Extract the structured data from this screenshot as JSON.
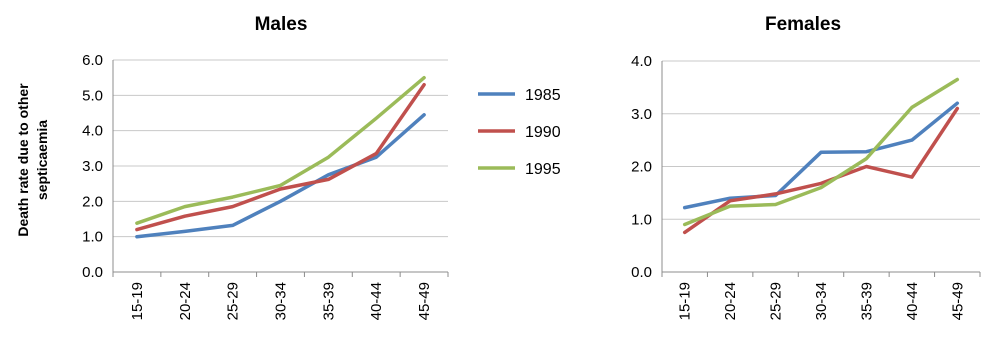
{
  "chart_data": [
    {
      "type": "line",
      "title": "Males",
      "ylabel": "Death rate due to other septicaemia",
      "xlabel": "",
      "categories": [
        "15-19",
        "20-24",
        "25-29",
        "30-34",
        "35-39",
        "40-44",
        "45-49"
      ],
      "ylim": [
        0,
        6
      ],
      "yticks": [
        "0.0",
        "1.0",
        "2.0",
        "3.0",
        "4.0",
        "5.0",
        "6.0"
      ],
      "grid": true,
      "series": [
        {
          "name": "1985",
          "color": "#4f81bd",
          "values": [
            1.0,
            1.15,
            1.32,
            2.0,
            2.75,
            3.25,
            4.45
          ]
        },
        {
          "name": "1990",
          "color": "#c0504d",
          "values": [
            1.2,
            1.58,
            1.85,
            2.35,
            2.62,
            3.35,
            5.3
          ]
        },
        {
          "name": "1995",
          "color": "#9bbb59",
          "values": [
            1.38,
            1.85,
            2.12,
            2.45,
            3.25,
            4.35,
            5.5
          ]
        }
      ]
    },
    {
      "type": "line",
      "title": "Females",
      "ylabel": "",
      "xlabel": "",
      "categories": [
        "15-19",
        "20-24",
        "25-29",
        "30-34",
        "35-39",
        "40-44",
        "45-49"
      ],
      "ylim": [
        0,
        4
      ],
      "yticks": [
        "0.0",
        "1.0",
        "2.0",
        "3.0",
        "4.0"
      ],
      "grid": true,
      "series": [
        {
          "name": "1985",
          "color": "#4f81bd",
          "values": [
            1.22,
            1.4,
            1.45,
            2.27,
            2.28,
            2.5,
            3.2
          ]
        },
        {
          "name": "1990",
          "color": "#c0504d",
          "values": [
            0.75,
            1.35,
            1.48,
            1.68,
            2.0,
            1.8,
            3.1
          ]
        },
        {
          "name": "1995",
          "color": "#9bbb59",
          "values": [
            0.9,
            1.25,
            1.28,
            1.6,
            2.15,
            3.12,
            3.65
          ]
        }
      ]
    }
  ],
  "legend": {
    "placement": "right of Males panel",
    "items": [
      {
        "label": "1985",
        "color": "#4f81bd"
      },
      {
        "label": "1990",
        "color": "#c0504d"
      },
      {
        "label": "1995",
        "color": "#9bbb59"
      }
    ]
  }
}
